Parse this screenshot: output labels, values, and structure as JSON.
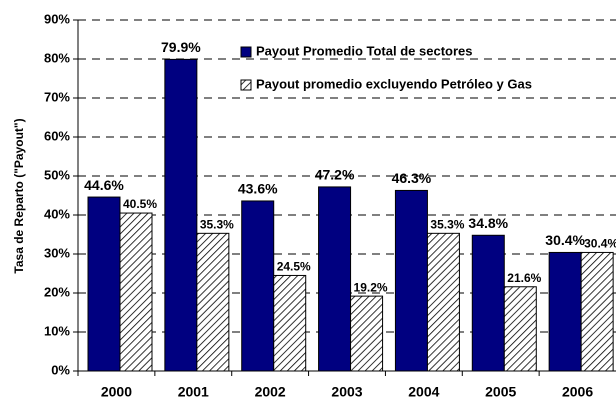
{
  "chart_data": {
    "type": "bar",
    "y_label": "Tasa de Reparto (\"Payout\")",
    "categories": [
      "2000",
      "2001",
      "2002",
      "2003",
      "2004",
      "2005",
      "2006"
    ],
    "series": [
      {
        "name": "Payout Promedio Total de sectores",
        "color": "#000080",
        "hatch": false,
        "values": [
          44.6,
          79.9,
          43.6,
          47.2,
          46.3,
          34.8,
          30.4
        ],
        "value_labels": [
          "44.6%",
          "79.9%",
          "43.6%",
          "47.2%",
          "46.3%",
          "34.8%",
          "30.4%"
        ]
      },
      {
        "name": "Payout promedio excluyendo Petróleo y Gas",
        "color": "#ffffff",
        "hatch": true,
        "values": [
          40.5,
          35.3,
          24.5,
          19.2,
          35.3,
          21.6,
          30.4
        ],
        "value_labels": [
          "40.5%",
          "35.3%",
          "24.5%",
          "19.2%",
          "35.3%",
          "21.6%",
          "30.4%"
        ]
      }
    ],
    "ylim": [
      0,
      90
    ],
    "yticks": [
      {
        "value": 0,
        "label": "0%"
      },
      {
        "value": 10,
        "label": "10%"
      },
      {
        "value": 20,
        "label": "20%"
      },
      {
        "value": 30,
        "label": "30%"
      },
      {
        "value": 40,
        "label": "40%"
      },
      {
        "value": 50,
        "label": "50%"
      },
      {
        "value": 60,
        "label": "60%"
      },
      {
        "value": 70,
        "label": "70%"
      },
      {
        "value": 80,
        "label": "80%"
      },
      {
        "value": 90,
        "label": "90%"
      }
    ],
    "grid": true,
    "legend": "top-right"
  }
}
